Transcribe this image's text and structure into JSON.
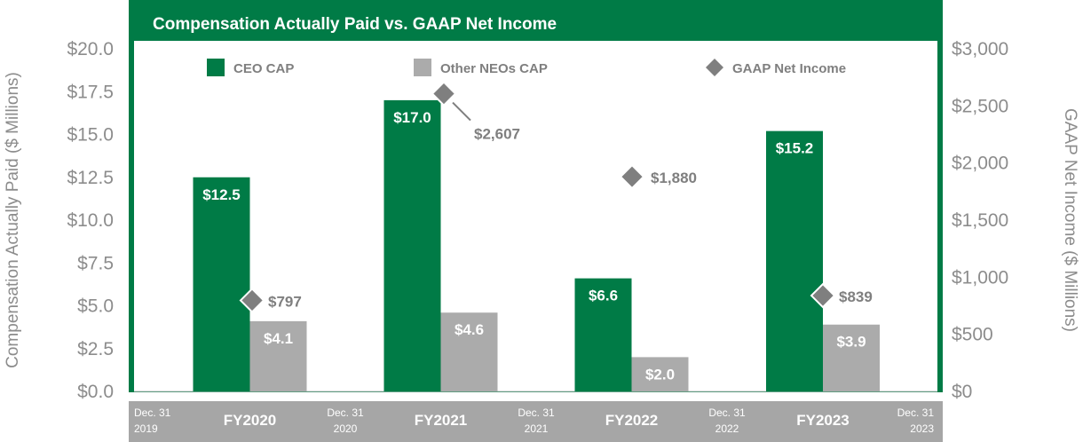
{
  "colors": {
    "frame": "#007b46",
    "ceo": "#007b46",
    "neo": "#ababab",
    "net_income": "#7f7f7f",
    "axis_text": "#8c8c8c",
    "bottom_band": "#a6a6a6"
  },
  "chart_data": {
    "type": "bar",
    "title": "Compensation Actually Paid vs. GAAP Net Income",
    "categories": [
      "FY2020",
      "FY2021",
      "FY2022",
      "FY2023"
    ],
    "date_boundaries": [
      {
        "line1": "Dec. 31",
        "line2": "2019"
      },
      {
        "line1": "Dec. 31",
        "line2": "2020"
      },
      {
        "line1": "Dec. 31",
        "line2": "2021"
      },
      {
        "line1": "Dec. 31",
        "line2": "2022"
      },
      {
        "line1": "Dec. 31",
        "line2": "2023"
      }
    ],
    "ylabel": "Compensation Actually Paid ($ Millions)",
    "y2label": "GAAP Net Income ($ Millions)",
    "ylim": [
      0,
      20
    ],
    "y2lim": [
      0,
      3000
    ],
    "yticks": [
      "$0.0",
      "$2.5",
      "$5.0",
      "$7.5",
      "$10.0",
      "$12.5",
      "$15.0",
      "$17.5",
      "$20.0"
    ],
    "y2ticks": [
      "$0",
      "$500",
      "$1,000",
      "$1,500",
      "$2,000",
      "$2,500",
      "$3,000"
    ],
    "legend_position": "top",
    "series": [
      {
        "name": "CEO CAP",
        "axis": "left",
        "values": [
          12.5,
          17.0,
          6.6,
          15.2
        ],
        "labels": [
          "$12.5",
          "$17.0",
          "$6.6",
          "$15.2"
        ]
      },
      {
        "name": "Other NEOs CAP",
        "axis": "left",
        "values": [
          4.1,
          4.6,
          2.0,
          3.9
        ],
        "labels": [
          "$4.1",
          "$4.6",
          "$2.0",
          "$3.9"
        ]
      },
      {
        "name": "GAAP Net Income",
        "axis": "right",
        "values": [
          797,
          2607,
          1880,
          839
        ],
        "labels": [
          "$797",
          "$2,607",
          "$1,880",
          "$839"
        ]
      }
    ]
  }
}
